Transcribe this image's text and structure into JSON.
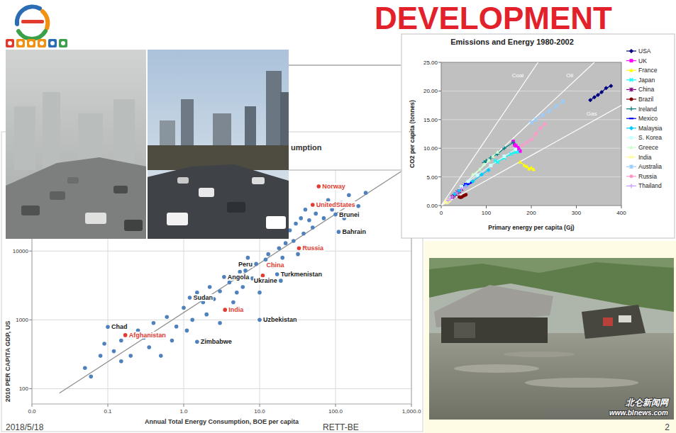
{
  "slide": {
    "title": "DEVELOPMENT",
    "date": "2018/5/18",
    "footer": "RETT-BE",
    "page": 2,
    "photo_watermark": [
      "北仑新闻网",
      "www.blnews.com"
    ]
  },
  "chart_data": [
    {
      "type": "scatter",
      "title": "umption",
      "x_label": "Annual Total Energy Consumption, BOE per capita",
      "y_label": "2010 PER CAPITA GDP, US",
      "log": true,
      "grid": true,
      "xlim": [
        0.01,
        1000
      ],
      "ylim": [
        60,
        150000
      ],
      "xticks": [
        {
          "value": 0.01,
          "label": "0.0"
        },
        {
          "value": 0.1,
          "label": "0.1"
        },
        {
          "value": 1,
          "label": "1.0"
        },
        {
          "value": 10,
          "label": "10.0"
        },
        {
          "value": 100,
          "label": "100.0"
        },
        {
          "value": 1000,
          "label": "1,000.0"
        }
      ],
      "yticks": [
        100,
        1000,
        10000
      ],
      "series": [
        {
          "color": "#4f81bd",
          "marker": "circle",
          "x": [
            0.05,
            0.06,
            0.08,
            0.09,
            0.12,
            0.15,
            0.2,
            0.25,
            0.3,
            0.35,
            0.4,
            0.5,
            0.6,
            0.7,
            0.8,
            1,
            1.1,
            1.3,
            1.5,
            1.8,
            2,
            2.2,
            2.5,
            3,
            3,
            4,
            4.5,
            5,
            5.5,
            6,
            7,
            8,
            9,
            10,
            12,
            13,
            15,
            18,
            20,
            22,
            25,
            28,
            30,
            32,
            35,
            38,
            40,
            45,
            50,
            55,
            60,
            70,
            80,
            90,
            120,
            130,
            150,
            200,
            250,
            0.15,
            0.5,
            2
          ],
          "values": [
            200,
            150,
            300,
            450,
            350,
            500,
            300,
            700,
            550,
            400,
            900,
            600,
            1100,
            500,
            800,
            1500,
            700,
            1000,
            2500,
            1800,
            1200,
            3000,
            2000,
            2600,
            900,
            3500,
            1800,
            2500,
            5000,
            3000,
            8000,
            4000,
            6500,
            2500,
            7500,
            9000,
            6000,
            11000,
            8000,
            13000,
            20000,
            14000,
            25000,
            9000,
            30000,
            18000,
            40000,
            28000,
            22000,
            35000,
            45000,
            30000,
            55000,
            40000,
            50000,
            30000,
            65000,
            45000,
            70000,
            250,
            300,
            500
          ]
        },
        {
          "color": "#4f81bd",
          "marker": "circle",
          "x": [
            3.4,
            6.5,
            17,
            19,
            1.2,
            10,
            0.1,
            1.5,
            110,
            100
          ],
          "values": [
            4200,
            5200,
            4600,
            3700,
            2100,
            1000,
            790,
            480,
            19000,
            34000
          ],
          "labels": [
            "Angola",
            "Peru",
            "Turkmenistan",
            "Ukraine",
            "Sudan",
            "Uzbekistan",
            "Chad",
            "Zimbabwe",
            "Bahrain",
            "Brunei"
          ]
        },
        {
          "color": "#e03c31",
          "marker": "circle",
          "x": [
            60,
            50,
            33,
            11,
            3.5,
            0.17
          ],
          "values": [
            87000,
            47000,
            11000,
            4400,
            1400,
            600
          ],
          "labels": [
            "Norway",
            "UnitedStates",
            "Russia",
            "China",
            "India",
            "Afghanistan"
          ]
        },
        {
          "type": "line",
          "color": "#8c8c8c",
          "x": [
            0.023,
            730
          ],
          "values": [
            86,
            143000
          ]
        }
      ]
    },
    {
      "type": "line",
      "title": "Emissions and Energy 1980-2002",
      "x_label": "Primary energy per capita (Gj)",
      "y_label": "CO2 per capita (tonnes)",
      "grid": true,
      "legend": "right",
      "xlim": [
        0,
        400
      ],
      "ylim": [
        0,
        25
      ],
      "xticks": [
        0,
        100,
        200,
        300,
        400
      ],
      "yticks": [
        {
          "value": 0,
          "label": "0.00"
        },
        {
          "value": 5,
          "label": "5.00"
        },
        {
          "value": 10,
          "label": "10.00"
        },
        {
          "value": 15,
          "label": "15.00"
        },
        {
          "value": 20,
          "label": "20.00"
        },
        {
          "value": 25,
          "label": "25.00"
        }
      ],
      "series": [
        {
          "name": "USA",
          "color": "#000080",
          "marker": "diamond",
          "x": [
            331,
            340,
            348,
            356,
            366,
            377
          ],
          "values": [
            18.4,
            18.9,
            19.3,
            19.8,
            20.5,
            20.9
          ]
        },
        {
          "name": "UK",
          "color": "#ff00ff",
          "marker": "square",
          "x": [
            160,
            163,
            166,
            170,
            172,
            175
          ],
          "values": [
            11.2,
            10.6,
            10.4,
            10.1,
            9.8,
            9.5
          ]
        },
        {
          "name": "France",
          "color": "#ffff00",
          "marker": "triangle",
          "x": [
            175,
            185,
            190,
            195,
            200,
            205
          ],
          "values": [
            7.6,
            7.0,
            6.8,
            6.4,
            6.6,
            6.3
          ]
        },
        {
          "name": "Japan",
          "color": "#00ffff",
          "marker": "x",
          "x": [
            120,
            125,
            140,
            155,
            165,
            170
          ],
          "values": [
            7.8,
            7.6,
            8.3,
            9.0,
            9.3,
            9.4
          ]
        },
        {
          "name": "China",
          "color": "#800080",
          "marker": "star",
          "x": [
            25,
            28,
            32,
            36,
            40,
            45
          ],
          "values": [
            1.5,
            1.7,
            2.0,
            2.3,
            2.5,
            2.9
          ]
        },
        {
          "name": "Brazil",
          "color": "#800000",
          "marker": "circle",
          "x": [
            40,
            43,
            46,
            50,
            53,
            55
          ],
          "values": [
            1.5,
            1.4,
            1.5,
            1.7,
            1.8,
            1.9
          ]
        },
        {
          "name": "Ireland",
          "color": "#008080",
          "marker": "plus",
          "x": [
            95,
            100,
            110,
            125,
            140,
            160
          ],
          "values": [
            7.5,
            7.8,
            8.3,
            9.0,
            10.0,
            11.0
          ]
        },
        {
          "name": "Mexico",
          "color": "#0000ff",
          "marker": "dash",
          "x": [
            50,
            55,
            58,
            60,
            62,
            64
          ],
          "values": [
            3.5,
            3.8,
            3.7,
            3.9,
            3.9,
            4.0
          ]
        },
        {
          "name": "Malaysia",
          "color": "#00ccff",
          "marker": "diamond",
          "x": [
            30,
            40,
            55,
            70,
            90,
            105
          ],
          "values": [
            2.0,
            2.6,
            3.4,
            4.2,
            5.4,
            6.2
          ]
        },
        {
          "name": "S. Korea",
          "color": "#ccffff",
          "marker": "square",
          "x": [
            45,
            60,
            80,
            110,
            140,
            165
          ],
          "values": [
            3.3,
            4.2,
            5.3,
            7.0,
            8.6,
            9.8
          ]
        },
        {
          "name": "Greece",
          "color": "#ccffcc",
          "marker": "triangle",
          "x": [
            70,
            85,
            95,
            105,
            115,
            125
          ],
          "values": [
            5.4,
            6.3,
            7.2,
            7.9,
            8.6,
            9.3
          ]
        },
        {
          "name": "India",
          "color": "#ffff99",
          "marker": "x",
          "x": [
            10,
            12,
            13,
            15,
            17,
            18
          ],
          "values": [
            0.5,
            0.6,
            0.7,
            0.8,
            0.9,
            1.0
          ]
        },
        {
          "name": "Australia",
          "color": "#99ccff",
          "marker": "star",
          "x": [
            200,
            210,
            225,
            240,
            255,
            270
          ],
          "values": [
            14.5,
            15.0,
            15.8,
            16.5,
            17.3,
            18.2
          ]
        },
        {
          "name": "Russia",
          "color": "#ff99cc",
          "marker": "circle",
          "x": [
            230,
            220,
            210,
            200,
            190,
            180
          ],
          "values": [
            14.2,
            13.5,
            12.5,
            11.5,
            11.0,
            10.5
          ]
        },
        {
          "name": "Thailand",
          "color": "#cc99ff",
          "marker": "plus",
          "x": [
            15,
            20,
            25,
            35,
            45,
            55
          ],
          "values": [
            0.9,
            1.2,
            1.5,
            2.2,
            2.9,
            3.3
          ]
        }
      ],
      "reference_lines": [
        {
          "label": "Coal",
          "x": [
            0,
            215
          ],
          "values": [
            0,
            25
          ]
        },
        {
          "label": "Oil",
          "x": [
            0,
            340
          ],
          "values": [
            0,
            25
          ]
        },
        {
          "label": "Gas",
          "x": [
            0,
            400
          ],
          "values": [
            0,
            17.5
          ]
        }
      ]
    }
  ]
}
